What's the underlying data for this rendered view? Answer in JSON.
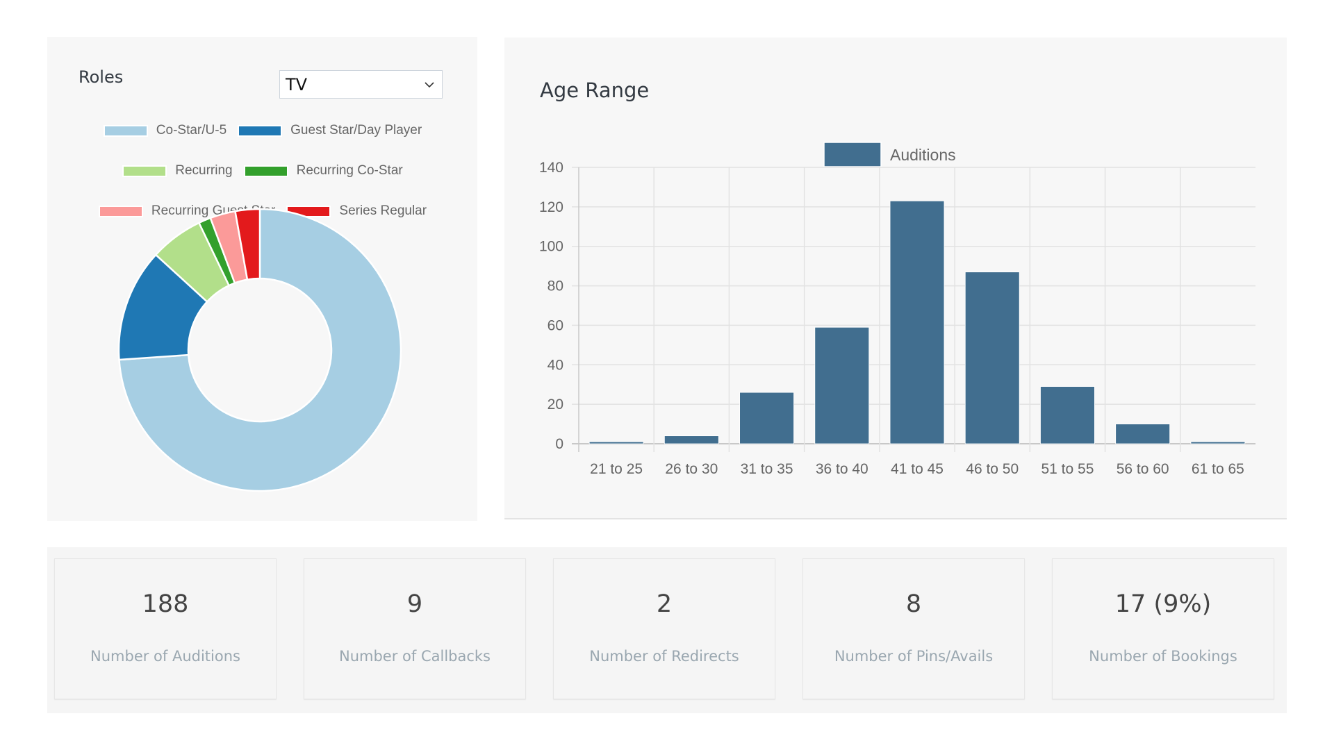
{
  "roles": {
    "title": "Roles",
    "select": {
      "value": "TV",
      "icon": "chevron-down-icon"
    },
    "legend": [
      {
        "label": "Co-Star/U-5",
        "color": "#a6cee3"
      },
      {
        "label": "Guest Star/Day Player",
        "color": "#1f78b4"
      },
      {
        "label": "Recurring",
        "color": "#b2df8a"
      },
      {
        "label": "Recurring Co-Star",
        "color": "#33a02c"
      },
      {
        "label": "Recurring Guest Star",
        "color": "#fb9a99"
      },
      {
        "label": "Series Regular",
        "color": "#e31a1c"
      }
    ]
  },
  "age_range": {
    "title": "Age Range"
  },
  "stats": [
    {
      "value": "188",
      "label": "Number of Auditions"
    },
    {
      "value": "9",
      "label": "Number of Callbacks"
    },
    {
      "value": "2",
      "label": "Number of Redirects"
    },
    {
      "value": "8",
      "label": "Number of Pins/Avails"
    },
    {
      "value": "17 (9%)",
      "label": "Number of Bookings"
    }
  ],
  "chart_data": [
    {
      "type": "pie",
      "variant": "doughnut",
      "title": "Roles",
      "categories": [
        "Co-Star/U-5",
        "Guest Star/Day Player",
        "Recurring",
        "Recurring Co-Star",
        "Recurring Guest Star",
        "Series Regular"
      ],
      "values": [
        73.9,
        12.9,
        6.1,
        1.4,
        2.9,
        2.8
      ],
      "unit": "percent (estimated)",
      "colors": [
        "#a6cee3",
        "#1f78b4",
        "#b2df8a",
        "#33a02c",
        "#fb9a99",
        "#e31a1c"
      ],
      "legend_position": "top"
    },
    {
      "type": "bar",
      "title": "Age Range",
      "categories": [
        "21 to 25",
        "26 to 30",
        "31 to 35",
        "36 to 40",
        "41 to 45",
        "46 to 50",
        "51 to 55",
        "56 to 60",
        "61 to 65"
      ],
      "series": [
        {
          "name": "Auditions",
          "values": [
            1,
            4,
            26,
            59,
            123,
            87,
            29,
            10,
            1
          ],
          "color": "#416e8f"
        }
      ],
      "yticks": [
        0,
        20,
        40,
        60,
        80,
        100,
        120,
        140
      ],
      "ylim": [
        0,
        140
      ],
      "xlabel": "",
      "ylabel": "",
      "grid": true,
      "legend_position": "top"
    }
  ]
}
